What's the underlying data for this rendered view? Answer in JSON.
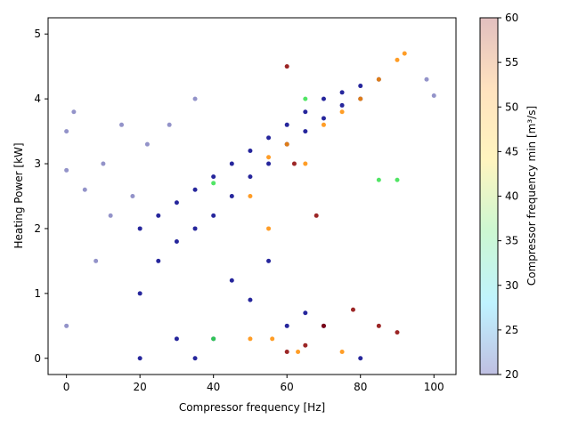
{
  "chart_data": {
    "type": "scatter",
    "title": "",
    "xlabel": "Compressor frequency [Hz]",
    "ylabel": "Heating Power [kW]",
    "xlim": [
      -5,
      106
    ],
    "ylim": [
      -0.25,
      5.25
    ],
    "x_ticks": [
      0,
      20,
      40,
      60,
      80,
      100
    ],
    "y_ticks": [
      0,
      1,
      2,
      3,
      4,
      5
    ],
    "grid": false,
    "colorbar": {
      "label": "Compressor frequency min [m³/s]",
      "range": [
        20,
        60
      ],
      "ticks": [
        20,
        25,
        30,
        35,
        40,
        45,
        50,
        55,
        60
      ],
      "colors": [
        "#00008b",
        "#00cfff",
        "#33e04a",
        "#ffd700",
        "#ff8c00",
        "#8b0000"
      ]
    },
    "series": [
      {
        "color": "#00008b",
        "points": [
          [
            20,
            0.0
          ],
          [
            20,
            1.0
          ],
          [
            20,
            2.0
          ],
          [
            25,
            1.5
          ],
          [
            25,
            2.2
          ],
          [
            30,
            0.3
          ],
          [
            30,
            1.8
          ],
          [
            30,
            2.4
          ],
          [
            35,
            0.0
          ],
          [
            35,
            2.0
          ],
          [
            35,
            2.6
          ],
          [
            40,
            2.2
          ],
          [
            40,
            2.8
          ],
          [
            45,
            2.5
          ],
          [
            45,
            3.0
          ],
          [
            50,
            2.8
          ],
          [
            50,
            3.2
          ],
          [
            55,
            3.0
          ],
          [
            55,
            3.4
          ],
          [
            60,
            3.3
          ],
          [
            60,
            3.6
          ],
          [
            65,
            3.5
          ],
          [
            65,
            3.8
          ],
          [
            70,
            3.7
          ],
          [
            70,
            4.0
          ],
          [
            75,
            3.9
          ],
          [
            75,
            4.1
          ],
          [
            80,
            4.0
          ],
          [
            80,
            4.2
          ],
          [
            85,
            4.3
          ],
          [
            40,
            0.3
          ],
          [
            60,
            0.5
          ],
          [
            80,
            0.0
          ],
          [
            65,
            0.7
          ],
          [
            70,
            0.5
          ],
          [
            55,
            1.5
          ],
          [
            50,
            0.9
          ],
          [
            45,
            1.2
          ]
        ]
      },
      {
        "color": "#ff8c00",
        "points": [
          [
            50,
            0.3
          ],
          [
            50,
            2.5
          ],
          [
            55,
            2.0
          ],
          [
            55,
            3.1
          ],
          [
            60,
            3.3
          ],
          [
            65,
            3.0
          ],
          [
            70,
            3.6
          ],
          [
            75,
            3.8
          ],
          [
            80,
            4.0
          ],
          [
            85,
            4.3
          ],
          [
            90,
            4.6
          ],
          [
            92,
            4.7
          ],
          [
            56,
            0.3
          ],
          [
            63,
            0.1
          ],
          [
            75,
            0.1
          ]
        ]
      },
      {
        "color": "#8b0000",
        "points": [
          [
            60,
            0.1
          ],
          [
            60,
            4.5
          ],
          [
            62,
            3.0
          ],
          [
            65,
            0.2
          ],
          [
            68,
            2.2
          ],
          [
            70,
            0.5
          ],
          [
            78,
            0.75
          ],
          [
            85,
            0.5
          ],
          [
            90,
            0.4
          ]
        ]
      },
      {
        "color": "#33e04a",
        "points": [
          [
            40,
            2.7
          ],
          [
            40,
            0.3
          ],
          [
            65,
            4.0
          ],
          [
            85,
            2.75
          ],
          [
            90,
            2.75
          ]
        ]
      },
      {
        "color": "#8080c0",
        "points": [
          [
            0,
            3.5
          ],
          [
            0,
            2.9
          ],
          [
            0,
            0.5
          ],
          [
            2,
            3.8
          ],
          [
            5,
            2.6
          ],
          [
            8,
            1.5
          ],
          [
            10,
            3.0
          ],
          [
            12,
            2.2
          ],
          [
            15,
            3.6
          ],
          [
            18,
            2.5
          ],
          [
            22,
            3.3
          ],
          [
            28,
            3.6
          ],
          [
            35,
            4.0
          ],
          [
            98,
            4.3
          ],
          [
            100,
            4.05
          ]
        ]
      }
    ]
  }
}
